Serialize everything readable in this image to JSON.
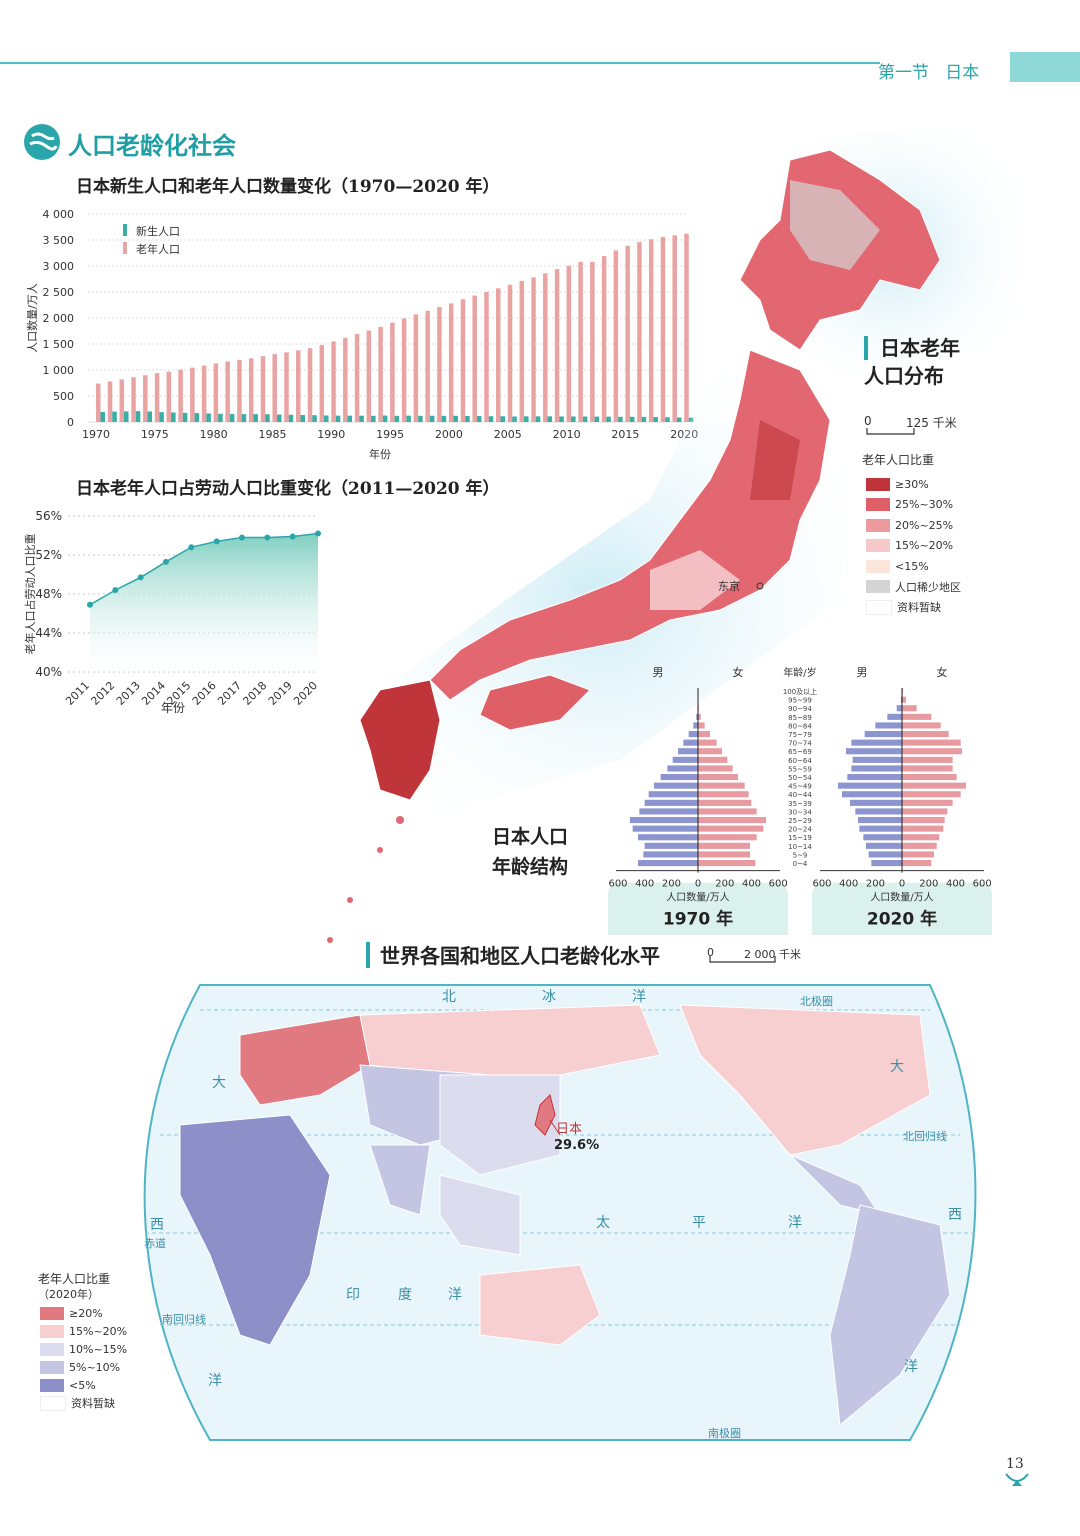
{
  "header": {
    "section": "第一节",
    "country": "日本",
    "page_number": "13"
  },
  "section_title": "人口老龄化社会",
  "chart1": {
    "title": "日本新生人口和老年人口数量变化（1970—2020 年）",
    "ylabel": "人口数量/万人",
    "xlabel": "年份",
    "legend": [
      "新生人口",
      "老年人口"
    ],
    "yticks": [
      "4 000",
      "3 500",
      "3 000",
      "2 500",
      "2 000",
      "1 500",
      "1 000",
      "500",
      "0"
    ],
    "xticks": [
      "1970",
      "1975",
      "1980",
      "1985",
      "1990",
      "1995",
      "2000",
      "2005",
      "2010",
      "2015",
      "2020"
    ],
    "colors": {
      "newborn": "#3aaea5",
      "elderly": "#e9a3a3"
    }
  },
  "chart2": {
    "title": "日本老年人口占劳动人口比重变化（2011—2020 年）",
    "ylabel": "老年人口占劳动人口比重",
    "xlabel": "年份",
    "yticks": [
      "56%",
      "52%",
      "48%",
      "44%",
      "40%"
    ],
    "xticks": [
      "2011",
      "2012",
      "2013",
      "2014",
      "2015",
      "2016",
      "2017",
      "2018",
      "2019",
      "2020"
    ]
  },
  "chart_data": [
    {
      "type": "bar",
      "title": "日本新生人口和老年人口数量变化（1970—2020 年）",
      "ylabel": "人口数量/万人",
      "xlabel": "年份",
      "ylim": [
        0,
        4000
      ],
      "legend_position": "top-left",
      "grid": true,
      "x": [
        1970,
        1971,
        1972,
        1973,
        1974,
        1975,
        1976,
        1977,
        1978,
        1979,
        1980,
        1981,
        1982,
        1983,
        1984,
        1985,
        1986,
        1987,
        1988,
        1989,
        1990,
        1991,
        1992,
        1993,
        1994,
        1995,
        1996,
        1997,
        1998,
        1999,
        2000,
        2001,
        2002,
        2003,
        2004,
        2005,
        2006,
        2007,
        2008,
        2009,
        2010,
        2011,
        2012,
        2013,
        2014,
        2015,
        2016,
        2017,
        2018,
        2019,
        2020
      ],
      "series": [
        {
          "name": "新生人口",
          "values": [
            193,
            200,
            204,
            209,
            203,
            190,
            183,
            176,
            171,
            164,
            158,
            153,
            152,
            151,
            149,
            143,
            138,
            135,
            131,
            125,
            122,
            122,
            121,
            119,
            124,
            119,
            121,
            119,
            120,
            118,
            119,
            117,
            115,
            112,
            111,
            106,
            109,
            109,
            109,
            107,
            107,
            105,
            104,
            103,
            100,
            101,
            98,
            95,
            92,
            87,
            84
          ]
        },
        {
          "name": "老年人口",
          "values": [
            739,
            779,
            819,
            859,
            899,
            939,
            969,
            1005,
            1045,
            1085,
            1125,
            1165,
            1195,
            1225,
            1265,
            1305,
            1339,
            1379,
            1419,
            1479,
            1550,
            1620,
            1690,
            1760,
            1830,
            1910,
            1990,
            2069,
            2139,
            2210,
            2280,
            2360,
            2431,
            2501,
            2571,
            2640,
            2710,
            2780,
            2860,
            2940,
            3004,
            3079,
            3079,
            3190,
            3300,
            3390,
            3459,
            3515,
            3558,
            3589,
            3621
          ]
        }
      ]
    },
    {
      "type": "line",
      "title": "日本老年人口占劳动人口比重变化（2011—2020 年）",
      "ylabel": "老年人口占劳动人口比重",
      "xlabel": "年份",
      "ylim": [
        40,
        56
      ],
      "x": [
        2011,
        2012,
        2013,
        2014,
        2015,
        2016,
        2017,
        2018,
        2019,
        2020
      ],
      "series": [
        {
          "values": [
            46.9,
            48.4,
            49.7,
            51.3,
            52.8,
            53.4,
            53.8,
            53.8,
            53.9,
            54.2
          ]
        }
      ]
    },
    {
      "type": "bar",
      "title": "1970 年",
      "xlabel": "人口数量/万人",
      "xticks": [
        "600",
        "400",
        "200",
        "0",
        "200",
        "400",
        "600"
      ],
      "xlim": [
        -600,
        600
      ],
      "categories": [
        "0~4",
        "5~9",
        "10~14",
        "15~19",
        "20~24",
        "25~29",
        "30~34",
        "35~39",
        "40~44",
        "45~49",
        "50~54",
        "55~59",
        "60~64",
        "65~69",
        "70~74",
        "75~79",
        "80~84",
        "85~89",
        "90~94",
        "95~99",
        "100及以上"
      ],
      "series": [
        {
          "name": "男",
          "values": [
            450,
            410,
            400,
            450,
            490,
            510,
            440,
            400,
            370,
            330,
            280,
            230,
            190,
            150,
            110,
            70,
            35,
            13,
            4,
            1,
            0
          ]
        },
        {
          "name": "女",
          "values": [
            430,
            390,
            390,
            440,
            490,
            510,
            440,
            400,
            380,
            350,
            300,
            260,
            220,
            180,
            140,
            90,
            50,
            20,
            6,
            1,
            0
          ]
        }
      ]
    },
    {
      "type": "bar",
      "title": "2020 年",
      "xlabel": "人口数量/万人",
      "xticks": [
        "600",
        "400",
        "200",
        "0",
        "200",
        "400",
        "600"
      ],
      "xlim": [
        -600,
        600
      ],
      "categories": [
        "0~4",
        "5~9",
        "10~14",
        "15~19",
        "20~24",
        "25~29",
        "30~34",
        "35~39",
        "40~44",
        "45~49",
        "50~54",
        "55~59",
        "60~64",
        "65~69",
        "70~74",
        "75~79",
        "80~84",
        "85~89",
        "90~94",
        "95~99",
        "100及以上"
      ],
      "series": [
        {
          "name": "男",
          "values": [
            230,
            250,
            270,
            290,
            320,
            330,
            350,
            390,
            450,
            480,
            410,
            380,
            370,
            420,
            380,
            280,
            200,
            110,
            40,
            8,
            1
          ]
        },
        {
          "name": "女",
          "values": [
            220,
            240,
            260,
            280,
            310,
            320,
            340,
            380,
            440,
            480,
            410,
            380,
            380,
            450,
            440,
            350,
            290,
            220,
            110,
            30,
            7
          ]
        }
      ]
    }
  ],
  "pyramid": {
    "title": "日本人口\n年龄结构",
    "title_line1": "日本人口",
    "title_line2": "年龄结构",
    "male": "男",
    "female": "女",
    "age_label": "年龄/岁",
    "ages": [
      "100及以上",
      "95~99",
      "90~94",
      "85~89",
      "80~84",
      "75~79",
      "70~74",
      "65~69",
      "60~64",
      "55~59",
      "50~54",
      "45~49",
      "40~44",
      "35~39",
      "30~34",
      "25~29",
      "20~24",
      "15~19",
      "10~14",
      "5~9",
      "0~4"
    ],
    "xlabel": "人口数量/万人",
    "xticks": [
      "600",
      "400",
      "200",
      "0",
      "200",
      "400",
      "600"
    ],
    "year1970": "1970 年",
    "year2020": "2020 年",
    "colors": {
      "male": "#8c95d0",
      "female": "#e79aa0"
    }
  },
  "japan_map": {
    "title_line1": "日本老年",
    "title_line2": "人口分布",
    "scale": [
      "0",
      "125 千米"
    ],
    "legend_title": "老年人口比重",
    "legend": [
      {
        "label": "≥30%",
        "color": "#c0353a"
      },
      {
        "label": "25%~30%",
        "color": "#de5f66"
      },
      {
        "label": "20%~25%",
        "color": "#ec9a9d"
      },
      {
        "label": "15%~20%",
        "color": "#f6c9cb"
      },
      {
        "label": "<15%",
        "color": "#fbe6d9"
      },
      {
        "label": "人口稀少地区",
        "color": "#d4d4d4"
      },
      {
        "label": "资料暂缺",
        "color": "#ffffff"
      }
    ],
    "tokyo": "东京"
  },
  "world_map": {
    "title": "世界各国和地区人口老龄化水平",
    "scale": [
      "0",
      "2 000 千米"
    ],
    "legend_title": "老年人口比重",
    "legend_subtitle": "（2020年）",
    "legend": [
      {
        "label": "≥20%",
        "color": "#e07a80"
      },
      {
        "label": "15%~20%",
        "color": "#f7cfd1"
      },
      {
        "label": "10%~15%",
        "color": "#dcdcef"
      },
      {
        "label": "5%~10%",
        "color": "#c3c5e3"
      },
      {
        "label": "<5%",
        "color": "#8d90c8"
      },
      {
        "label": "资料暂缺",
        "color": "#ffffff"
      }
    ],
    "japan_label": "日本",
    "japan_value": "29.6%",
    "labels": [
      "北",
      "冰",
      "洋",
      "北极圈",
      "大",
      "北回归线",
      "西",
      "赤道",
      "太",
      "平",
      "洋",
      "西",
      "印",
      "度",
      "洋",
      "南回归线",
      "洋",
      "洋",
      "南极圈",
      "大"
    ]
  }
}
